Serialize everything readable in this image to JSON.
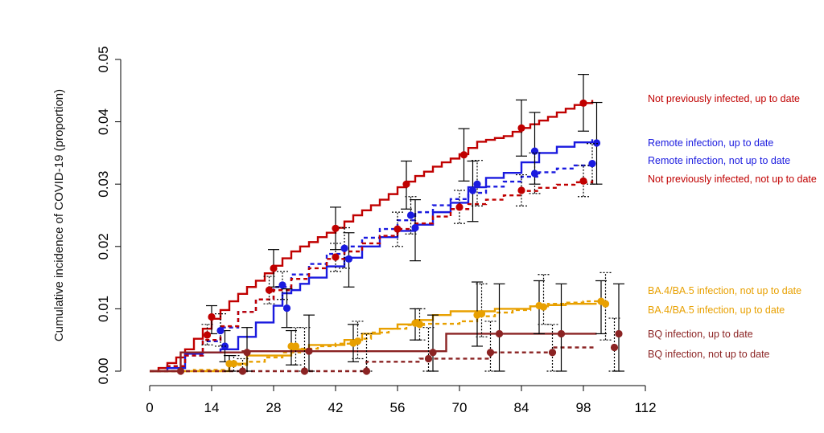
{
  "chart_data": {
    "type": "line",
    "title": "",
    "xlabel": "",
    "ylabel": "Cumulative incidence of COVID-19 (proportion)",
    "xlim": [
      0,
      112
    ],
    "ylim": [
      0,
      0.05
    ],
    "x_ticks": [
      "0",
      "14",
      "28",
      "42",
      "56",
      "70",
      "84",
      "98",
      "112"
    ],
    "y_ticks": [
      "0.00",
      "0.01",
      "0.02",
      "0.03",
      "0.04",
      "0.05"
    ],
    "grid": false,
    "legend_position": "right",
    "series": [
      {
        "name": "Not previously infected, up to date",
        "color": "#c00000",
        "dash": "solid",
        "x": [
          0,
          2,
          4,
          6,
          8,
          10,
          12,
          14,
          16,
          18,
          20,
          22,
          24,
          26,
          28,
          30,
          32,
          34,
          36,
          38,
          40,
          42,
          44,
          46,
          48,
          50,
          52,
          54,
          56,
          58,
          60,
          62,
          64,
          66,
          68,
          70,
          72,
          74,
          76,
          78,
          80,
          82,
          84,
          86,
          88,
          90,
          92,
          94,
          96,
          98,
          100
        ],
        "y": [
          0,
          0.0005,
          0.0013,
          0.0022,
          0.0035,
          0.0052,
          0.0068,
          0.0084,
          0.0098,
          0.0112,
          0.0124,
          0.0135,
          0.0145,
          0.0157,
          0.0169,
          0.0181,
          0.0192,
          0.02,
          0.0207,
          0.0215,
          0.0222,
          0.023,
          0.024,
          0.025,
          0.0258,
          0.0266,
          0.0275,
          0.0284,
          0.0295,
          0.0304,
          0.0313,
          0.032,
          0.0328,
          0.0335,
          0.0341,
          0.0348,
          0.0358,
          0.0368,
          0.0371,
          0.0374,
          0.0377,
          0.0384,
          0.039,
          0.0396,
          0.0402,
          0.0408,
          0.0415,
          0.0421,
          0.0427,
          0.043,
          0.0435
        ]
      },
      {
        "name": "Remote infection, up to date",
        "color": "#1a1adf",
        "dash": "solid",
        "x": [
          0,
          4,
          8,
          12,
          16,
          20,
          24,
          28,
          30,
          32,
          34,
          36,
          40,
          44,
          48,
          52,
          56,
          60,
          64,
          68,
          72,
          76,
          80,
          84,
          88,
          92,
          96,
          100
        ],
        "y": [
          0,
          0.0005,
          0.0028,
          0.003,
          0.0035,
          0.0055,
          0.0078,
          0.0105,
          0.0125,
          0.013,
          0.014,
          0.015,
          0.0168,
          0.0182,
          0.02,
          0.0215,
          0.0225,
          0.0235,
          0.0255,
          0.027,
          0.0295,
          0.031,
          0.0318,
          0.0335,
          0.035,
          0.036,
          0.0367,
          0.0372
        ]
      },
      {
        "name": "Remote infection, not up to date",
        "color": "#1a1adf",
        "dash": "dashed",
        "x": [
          0,
          4,
          8,
          12,
          16,
          20,
          24,
          28,
          32,
          36,
          40,
          44,
          48,
          52,
          56,
          60,
          64,
          68,
          72,
          76,
          80,
          84,
          88,
          92,
          96,
          100
        ],
        "y": [
          0,
          0.0008,
          0.0025,
          0.0048,
          0.007,
          0.0095,
          0.0115,
          0.0135,
          0.0155,
          0.0172,
          0.0188,
          0.02,
          0.0214,
          0.0228,
          0.0242,
          0.0255,
          0.0266,
          0.0276,
          0.0286,
          0.0296,
          0.0304,
          0.0312,
          0.0319,
          0.0325,
          0.033,
          0.0335
        ]
      },
      {
        "name": "Not previously infected, not up to date",
        "color": "#c00000",
        "dash": "dashed",
        "x": [
          0,
          4,
          8,
          12,
          16,
          20,
          24,
          28,
          32,
          36,
          40,
          44,
          48,
          52,
          56,
          60,
          64,
          68,
          72,
          76,
          80,
          84,
          88,
          92,
          96,
          100
        ],
        "y": [
          0,
          0.0008,
          0.0025,
          0.005,
          0.0072,
          0.0095,
          0.0115,
          0.013,
          0.0148,
          0.0165,
          0.018,
          0.0192,
          0.0205,
          0.0217,
          0.0228,
          0.0237,
          0.0248,
          0.026,
          0.0268,
          0.0275,
          0.0282,
          0.0289,
          0.0294,
          0.0299,
          0.0303,
          0.031
        ]
      },
      {
        "name": "BA.4/BA.5 infection, not up to date",
        "color": "#e8a000",
        "dash": "dashed",
        "x": [
          0,
          10,
          18,
          22,
          26,
          30,
          34,
          38,
          42,
          46,
          50,
          54,
          58,
          62,
          70,
          74,
          78,
          82,
          86,
          90,
          94,
          98,
          102
        ],
        "y": [
          0,
          0.0002,
          0.001,
          0.0015,
          0.0022,
          0.003,
          0.0036,
          0.004,
          0.0044,
          0.0052,
          0.0062,
          0.0068,
          0.0074,
          0.0076,
          0.008,
          0.0088,
          0.0094,
          0.0098,
          0.0104,
          0.0108,
          0.011,
          0.0112,
          0.0112
        ]
      },
      {
        "name": "BA.4/BA.5 infection, up to date",
        "color": "#e8a000",
        "dash": "solid",
        "x": [
          0,
          18,
          22,
          32,
          36,
          40,
          44,
          48,
          52,
          56,
          60,
          64,
          68,
          74,
          78,
          86,
          90,
          94,
          101
        ],
        "y": [
          0,
          0.0012,
          0.0025,
          0.0035,
          0.0042,
          0.0042,
          0.005,
          0.006,
          0.0068,
          0.0075,
          0.0082,
          0.009,
          0.0096,
          0.0096,
          0.01,
          0.0104,
          0.0106,
          0.0108,
          0.0108
        ]
      },
      {
        "name": "BQ infection, up to date",
        "color": "#8b2323",
        "dash": "solid",
        "x": [
          0,
          6,
          7,
          20,
          21,
          66,
          67,
          101
        ],
        "y": [
          0,
          0,
          0.003,
          0.003,
          0.0032,
          0.0032,
          0.006,
          0.006
        ]
      },
      {
        "name": "BQ infection, not up to date",
        "color": "#8b2323",
        "dash": "dashed",
        "x": [
          0,
          48,
          49,
          60,
          61,
          76,
          77,
          90,
          91,
          101
        ],
        "y": [
          0,
          0,
          0.0015,
          0.0015,
          0.002,
          0.002,
          0.003,
          0.003,
          0.0038,
          0.0038
        ]
      }
    ],
    "error_bars": [
      {
        "series": "Not previously infected, up to date",
        "x": [
          14,
          28,
          42,
          58,
          71,
          84,
          98
        ],
        "y": [
          0.0087,
          0.0165,
          0.0229,
          0.03,
          0.0347,
          0.039,
          0.043
        ],
        "lo": [
          0.006,
          0.0135,
          0.0195,
          0.026,
          0.0305,
          0.0345,
          0.0385
        ],
        "hi": [
          0.0105,
          0.0195,
          0.0263,
          0.0337,
          0.0389,
          0.0435,
          0.0476
        ]
      },
      {
        "series": "Remote infection, up to date",
        "x": [
          17,
          31,
          45,
          60,
          73,
          87,
          101
        ],
        "y": [
          0.004,
          0.0101,
          0.018,
          0.023,
          0.029,
          0.0353,
          0.0366
        ],
        "lo": [
          0.0015,
          0.007,
          0.0135,
          0.0177,
          0.024,
          0.03,
          0.03
        ],
        "hi": [
          0.0065,
          0.0132,
          0.0222,
          0.0275,
          0.0337,
          0.0415,
          0.0431
        ]
      },
      {
        "series": "Remote infection, not up to date",
        "x": [
          16,
          30,
          44,
          59,
          74,
          87,
          100
        ],
        "y": [
          0.0065,
          0.0138,
          0.0197,
          0.025,
          0.03,
          0.0317,
          0.0333
        ],
        "lo": [
          0.004,
          0.0115,
          0.0165,
          0.022,
          0.0265,
          0.0285,
          0.03
        ],
        "hi": [
          0.0092,
          0.016,
          0.023,
          0.028,
          0.0338,
          0.035,
          0.0365
        ]
      },
      {
        "series": "Not previously infected, not up to date",
        "x": [
          13,
          27,
          42,
          56,
          70,
          84,
          98
        ],
        "y": [
          0.0058,
          0.013,
          0.0183,
          0.0228,
          0.0263,
          0.029,
          0.0305
        ],
        "lo": [
          0.0042,
          0.0108,
          0.016,
          0.02,
          0.0237,
          0.0265,
          0.028
        ],
        "hi": [
          0.0075,
          0.0152,
          0.0205,
          0.0255,
          0.029,
          0.0315,
          0.033
        ]
      },
      {
        "series": "BA.4/BA.5 infection, not up to date",
        "x": [
          19,
          33,
          47,
          61,
          75,
          89,
          103
        ],
        "y": [
          0.0012,
          0.004,
          0.0048,
          0.0075,
          0.0092,
          0.0103,
          0.0108
        ],
        "lo": [
          0,
          0.001,
          0.002,
          0.005,
          0.0055,
          0.0075,
          0.005
        ],
        "hi": [
          0.0025,
          0.007,
          0.008,
          0.01,
          0.014,
          0.0155,
          0.0158
        ]
      },
      {
        "series": "BA.4/BA.5 infection, up to date",
        "x": [
          18,
          32,
          46,
          60,
          74,
          88,
          102
        ],
        "y": [
          0.0012,
          0.004,
          0.0045,
          0.0077,
          0.009,
          0.0105,
          0.0112
        ],
        "lo": [
          0,
          0.001,
          0.0015,
          0.005,
          0.004,
          0.006,
          0.006
        ],
        "hi": [
          0.0025,
          0.0065,
          0.0075,
          0.01,
          0.0143,
          0.0145,
          0.0145
        ]
      },
      {
        "series": "BQ infection, up to date",
        "x": [
          22,
          36,
          64,
          79,
          93,
          106
        ],
        "y": [
          0.003,
          0.0032,
          0.003,
          0.006,
          0.006,
          0.006
        ],
        "lo": [
          0,
          0,
          0,
          0,
          0,
          0
        ],
        "hi": [
          0.007,
          0.009,
          0.009,
          0.014,
          0.014,
          0.014
        ]
      },
      {
        "series": "BQ infection, not up to date",
        "x": [
          7,
          21,
          35,
          49,
          63,
          77,
          91,
          105
        ],
        "y": [
          0,
          0,
          0,
          0,
          0.002,
          0.003,
          0.003,
          0.0038
        ],
        "lo": [
          0,
          0,
          0,
          0,
          0,
          0,
          0,
          0
        ],
        "hi": [
          0,
          0.002,
          0.007,
          0.006,
          0.007,
          0.008,
          0.0075,
          0.0085
        ]
      }
    ],
    "legend": [
      {
        "label": "Not previously infected, up to date",
        "color": "#c00000"
      },
      {
        "label": "Remote infection, up to date",
        "color": "#1a1adf"
      },
      {
        "label": "Remote infection, not up to date",
        "color": "#1a1adf"
      },
      {
        "label": "Not previously infected, not up to date",
        "color": "#c00000"
      },
      {
        "label": "BA.4/BA.5 infection, not up to date",
        "color": "#e8a000"
      },
      {
        "label": "BA.4/BA.5 infection, up to date",
        "color": "#e8a000"
      },
      {
        "label": "BQ infection, up to date",
        "color": "#8b2323"
      },
      {
        "label": "BQ infection, not up to date",
        "color": "#8b2323"
      }
    ]
  }
}
